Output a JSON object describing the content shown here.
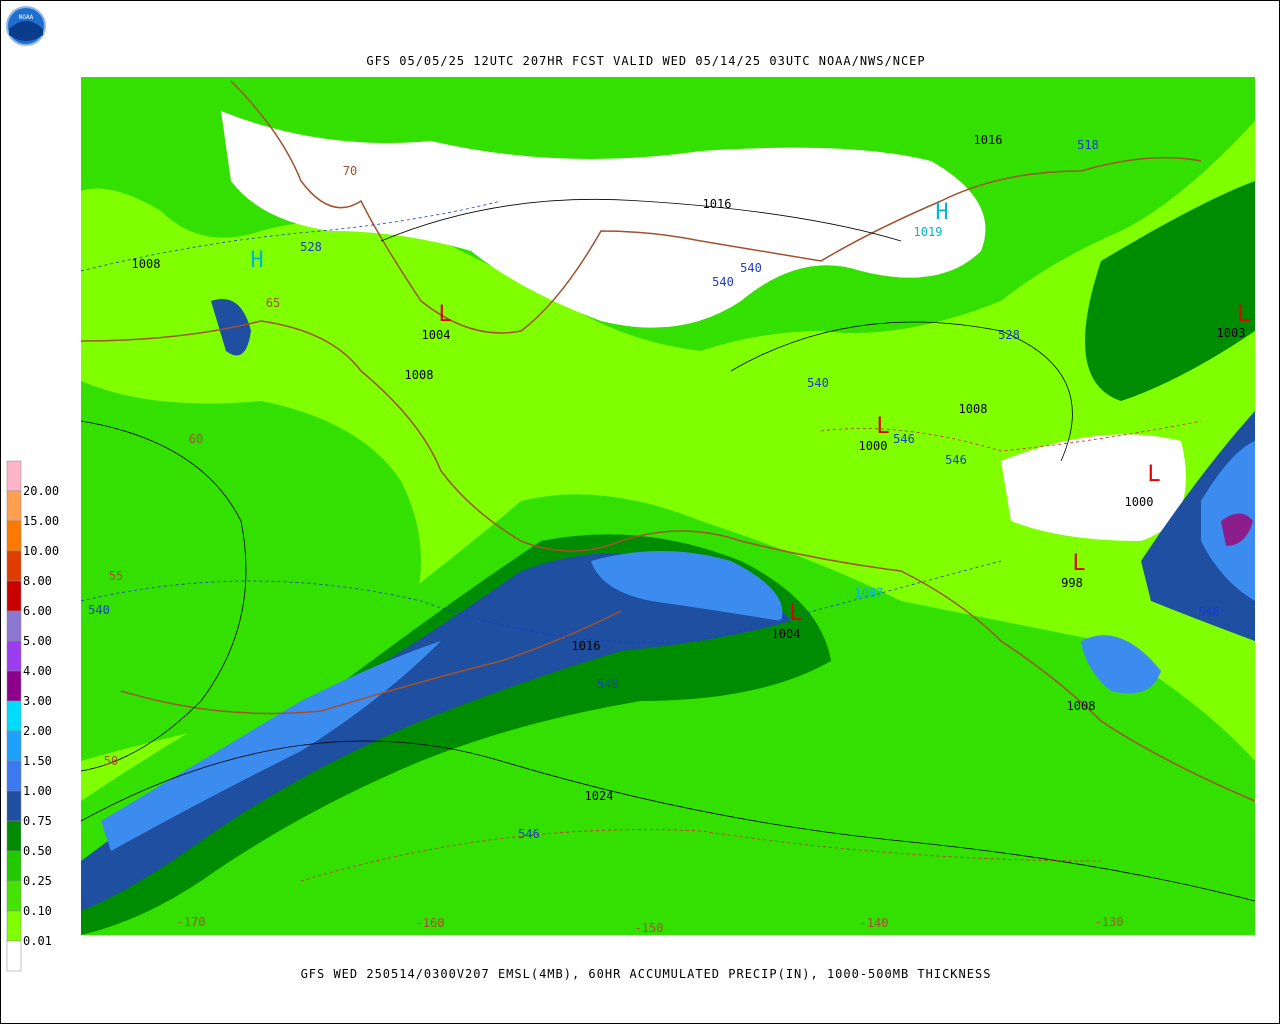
{
  "header": {
    "title": "GFS 05/05/25 12UTC 207HR FCST VALID WED 05/14/25 03UTC NOAA/NWS/NCEP",
    "logo": "NOAA"
  },
  "caption": "GFS WED 250514/0300V207 EMSL(4MB), 60HR ACCUMULATED PRECIP(IN), 1000-500MB THICKNESS",
  "legend": {
    "labels": [
      "20.00",
      "15.00",
      "10.00",
      "8.00",
      "6.00",
      "5.00",
      "4.00",
      "3.00",
      "2.00",
      "1.50",
      "1.00",
      "0.75",
      "0.50",
      "0.25",
      "0.10",
      "0.01"
    ]
  },
  "map": {
    "pressure_labels": [
      "1008",
      "1004",
      "1008",
      "1016",
      "1016",
      "1008",
      "1000",
      "1000",
      "998",
      "1004",
      "1016",
      "1024",
      "1008",
      "1003"
    ],
    "cyan_labels": [
      "1019",
      "1007"
    ],
    "thickness_labels": [
      "528",
      "540",
      "540",
      "528",
      "518",
      "540",
      "546",
      "546",
      "540",
      "540",
      "546",
      "546"
    ],
    "highs": [
      "H",
      "H"
    ],
    "lows": [
      "L",
      "L",
      "L",
      "L",
      "L",
      "L"
    ],
    "latitude_labels": [
      "70",
      "65",
      "60",
      "55",
      "50"
    ],
    "longitude_labels": [
      "-170",
      "-160",
      "-150",
      "-140",
      "-130"
    ]
  }
}
